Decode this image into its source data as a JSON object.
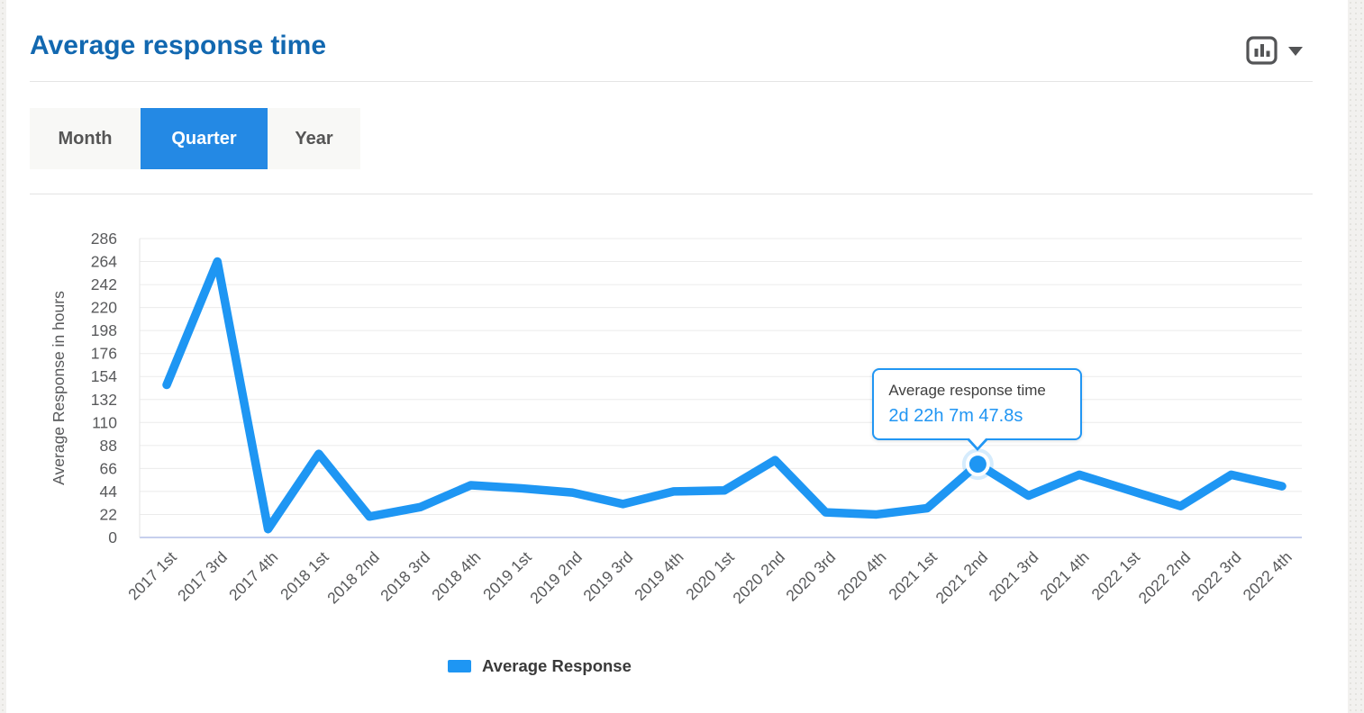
{
  "header": {
    "title": "Average response time",
    "chart_type_icon": "bar-chart-icon",
    "dropdown_icon": "caret-down-icon"
  },
  "tabs": [
    {
      "label": "Month",
      "active": false
    },
    {
      "label": "Quarter",
      "active": true
    },
    {
      "label": "Year",
      "active": false
    }
  ],
  "tooltip": {
    "title": "Average response time",
    "value": "2d 22h 7m 47.8s"
  },
  "legend": {
    "label": "Average Response",
    "swatch_color": "#1E96F3"
  },
  "colors": {
    "title": "#1268B0",
    "tab_active_bg": "#2489E4",
    "line": "#1E96F3",
    "grid": "#EBEBEB",
    "baseline": "#C6CFED",
    "plot_left_border": "#E3E3E3",
    "axis_text": "#58595B",
    "tooltip_border": "#2196F3",
    "tooltip_value_text": "#2196F3"
  },
  "chart_data": {
    "type": "line",
    "title": "Average response time",
    "xlabel": "",
    "ylabel": "Average Response in hours",
    "categories": [
      "2017 1st",
      "2017 3rd",
      "2017 4th",
      "2018 1st",
      "2018 2nd",
      "2018 3rd",
      "2018 4th",
      "2019 1st",
      "2019 2nd",
      "2019 3rd",
      "2019 4th",
      "2020 1st",
      "2020 2nd",
      "2020 3rd",
      "2020 4th",
      "2021 1st",
      "2021 2nd",
      "2021 3rd",
      "2021 4th",
      "2022 1st",
      "2022 2nd",
      "2022 3rd",
      "2022 4th"
    ],
    "series": [
      {
        "name": "Average Response",
        "values": [
          146,
          264,
          8,
          80,
          20,
          29,
          50,
          47,
          43,
          32,
          44,
          45,
          74,
          24,
          22,
          28,
          70.13,
          40,
          60,
          45,
          30,
          60,
          49
        ]
      }
    ],
    "y_ticks": [
      0,
      22,
      44,
      66,
      88,
      110,
      132,
      154,
      176,
      198,
      220,
      242,
      264,
      286
    ],
    "ylim": [
      0,
      286
    ],
    "grid": true,
    "legend_position": "bottom",
    "highlighted_point": {
      "index": 16,
      "category": "2021 2nd",
      "series": "Average Response",
      "value_hours": 70.13,
      "value_label": "2d 22h 7m 47.8s"
    }
  }
}
